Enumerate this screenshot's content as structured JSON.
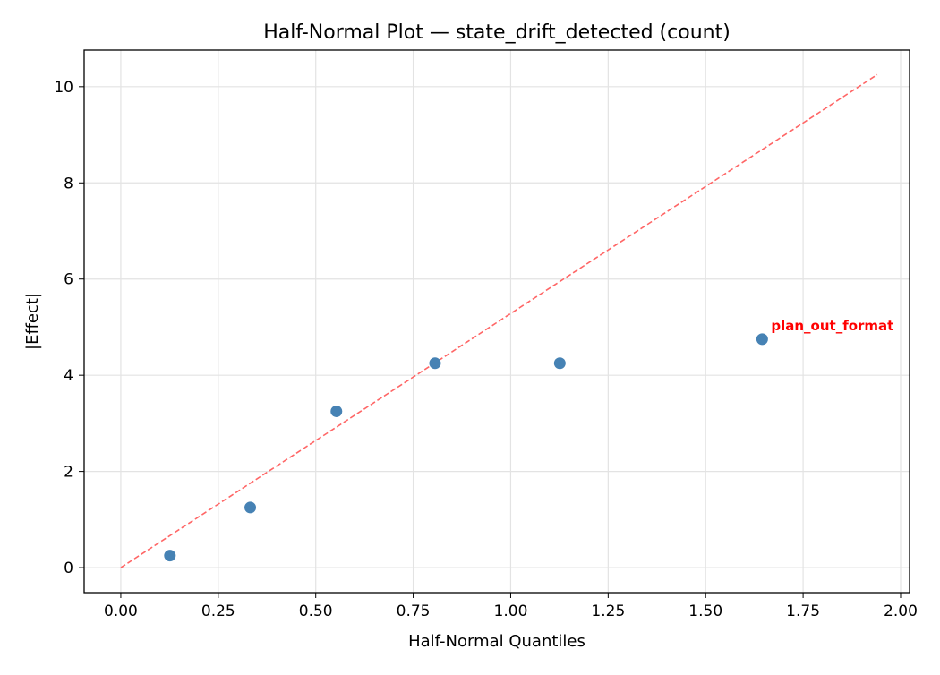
{
  "chart_data": {
    "type": "scatter",
    "title": "Half-Normal Plot — state_drift_detected (count)",
    "xlabel": "Half-Normal Quantiles",
    "ylabel": "|Effect|",
    "xlim": [
      -0.094,
      2.023
    ],
    "ylim": [
      -0.52,
      10.76
    ],
    "xticks": [
      "0.00",
      "0.25",
      "0.50",
      "0.75",
      "1.00",
      "1.25",
      "1.50",
      "1.75",
      "2.00"
    ],
    "yticks": [
      "0",
      "2",
      "4",
      "6",
      "8",
      "10"
    ],
    "grid": true,
    "points": [
      {
        "x": 0.126,
        "y": 0.25
      },
      {
        "x": 0.332,
        "y": 1.25
      },
      {
        "x": 0.553,
        "y": 3.25
      },
      {
        "x": 0.806,
        "y": 4.25
      },
      {
        "x": 1.126,
        "y": 4.25
      },
      {
        "x": 1.645,
        "y": 4.75,
        "label": "plan_out_format"
      }
    ],
    "reference_line": {
      "x": [
        0,
        1.94
      ],
      "y": [
        0,
        10.25
      ],
      "style": "dashed"
    },
    "colors": {
      "points": "#4682b4",
      "line": "#ff6666",
      "label": "#ff0000"
    }
  }
}
